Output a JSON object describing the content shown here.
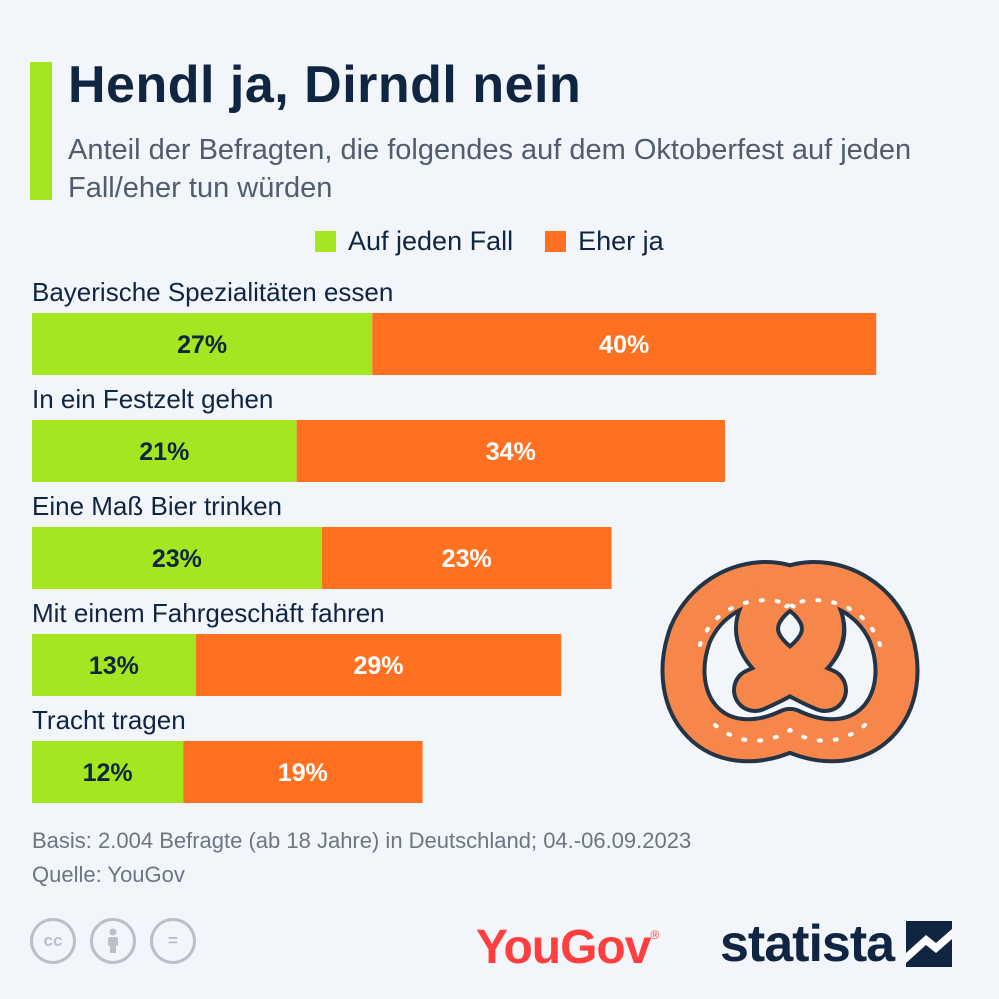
{
  "header": {
    "title": "Hendl ja, Dirndl nein",
    "subtitle": "Anteil der Befragten, die folgendes auf dem Oktoberfest auf jeden Fall/eher tun würden"
  },
  "colors": {
    "accent": "#a4e61f",
    "series1": "#a4e61f",
    "series2": "#ff7120",
    "title": "#0f2541"
  },
  "legend": {
    "items": [
      {
        "label": "Auf jeden Fall",
        "color": "#a4e61f"
      },
      {
        "label": "Eher ja",
        "color": "#ff7120"
      }
    ]
  },
  "chart_data": {
    "type": "bar",
    "orientation": "horizontal",
    "stacked": true,
    "title": "Hendl ja, Dirndl nein",
    "subtitle": "Anteil der Befragten, die folgendes auf dem Oktoberfest auf jeden Fall/eher tun würden",
    "categories": [
      "Bayerische Spezialitäten essen",
      "In ein Festzelt gehen",
      "Eine Maß Bier trinken",
      "Mit einem Fahrgeschäft fahren",
      "Tracht tragen"
    ],
    "series": [
      {
        "name": "Auf jeden Fall",
        "values": [
          27,
          21,
          23,
          13,
          12
        ],
        "color": "#a4e61f"
      },
      {
        "name": "Eher ja",
        "values": [
          40,
          34,
          23,
          29,
          19
        ],
        "color": "#ff7120"
      }
    ],
    "value_suffix": "%",
    "legend_position": "top",
    "grid": false
  },
  "footer": {
    "basis": "Basis: 2.004 Befragte (ab 18 Jahre) in Deutschland; 04.-06.09.2023",
    "source": "Quelle: YouGov"
  },
  "branding": {
    "yougov": "YouGov",
    "yougov_mark": "®",
    "statista": "statista",
    "cc_icons": [
      "cc-icon",
      "by-icon",
      "nd-icon"
    ],
    "cc_labels": [
      "cc",
      "",
      "="
    ]
  },
  "decoration": {
    "pretzel_icon": "pretzel-icon"
  }
}
